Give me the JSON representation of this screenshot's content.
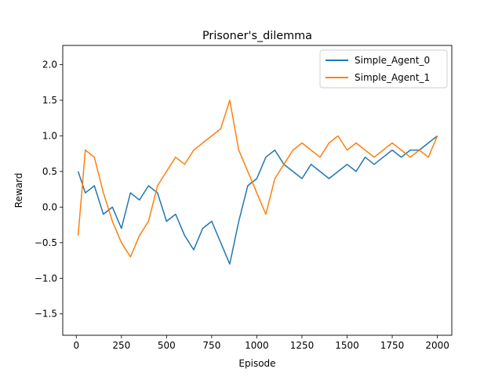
{
  "chart_data": {
    "type": "line",
    "title": "Prisoner's_dilemma",
    "xlabel": "Episode",
    "ylabel": "Reward",
    "xlim": [
      -75,
      2080
    ],
    "ylim": [
      -1.8,
      2.27
    ],
    "xticks": [
      0,
      250,
      500,
      750,
      1000,
      1250,
      1500,
      1750,
      2000
    ],
    "yticks": [
      -1.5,
      -1.0,
      -0.5,
      0.0,
      0.5,
      1.0,
      1.5,
      2.0
    ],
    "xtick_labels": [
      "0",
      "250",
      "500",
      "750",
      "1000",
      "1250",
      "1500",
      "1750",
      "2000"
    ],
    "ytick_labels": [
      "−1.5",
      "−1.0",
      "−0.5",
      "0.0",
      "0.5",
      "1.0",
      "1.5",
      "2.0"
    ],
    "grid": false,
    "legend_position": "top-right",
    "series": [
      {
        "name": "Simple_Agent_0",
        "color": "#1f77b4",
        "x": [
          10,
          50,
          100,
          150,
          200,
          250,
          300,
          350,
          400,
          450,
          500,
          550,
          600,
          650,
          700,
          750,
          800,
          850,
          900,
          950,
          1000,
          1050,
          1100,
          1150,
          1200,
          1250,
          1300,
          1350,
          1400,
          1450,
          1500,
          1550,
          1600,
          1650,
          1700,
          1750,
          1800,
          1850,
          1900,
          1950,
          2000
        ],
        "values": [
          0.5,
          0.2,
          0.3,
          -0.1,
          0.0,
          -0.3,
          0.2,
          0.1,
          0.3,
          0.2,
          -0.2,
          -0.1,
          -0.4,
          -0.6,
          -0.3,
          -0.2,
          -0.5,
          -0.8,
          -0.2,
          0.3,
          0.4,
          0.7,
          0.8,
          0.6,
          0.5,
          0.4,
          0.6,
          0.5,
          0.4,
          0.5,
          0.6,
          0.5,
          0.7,
          0.6,
          0.7,
          0.8,
          0.7,
          0.8,
          0.8,
          0.9,
          1.0
        ]
      },
      {
        "name": "Simple_Agent_1",
        "color": "#ff7f0e",
        "x": [
          10,
          50,
          100,
          150,
          200,
          250,
          300,
          350,
          400,
          450,
          500,
          550,
          600,
          650,
          700,
          750,
          800,
          850,
          900,
          950,
          1000,
          1050,
          1100,
          1150,
          1200,
          1250,
          1300,
          1350,
          1400,
          1450,
          1500,
          1550,
          1600,
          1650,
          1700,
          1750,
          1800,
          1850,
          1900,
          1950,
          2000
        ],
        "values": [
          -0.4,
          0.8,
          0.7,
          0.2,
          -0.2,
          -0.5,
          -0.7,
          -0.4,
          -0.2,
          0.3,
          0.5,
          0.7,
          0.6,
          0.8,
          0.9,
          1.0,
          1.1,
          1.5,
          0.8,
          0.5,
          0.2,
          -0.1,
          0.4,
          0.6,
          0.8,
          0.9,
          0.8,
          0.7,
          0.9,
          1.0,
          0.8,
          0.9,
          0.8,
          0.7,
          0.8,
          0.9,
          0.8,
          0.7,
          0.8,
          0.7,
          1.0
        ]
      }
    ]
  }
}
